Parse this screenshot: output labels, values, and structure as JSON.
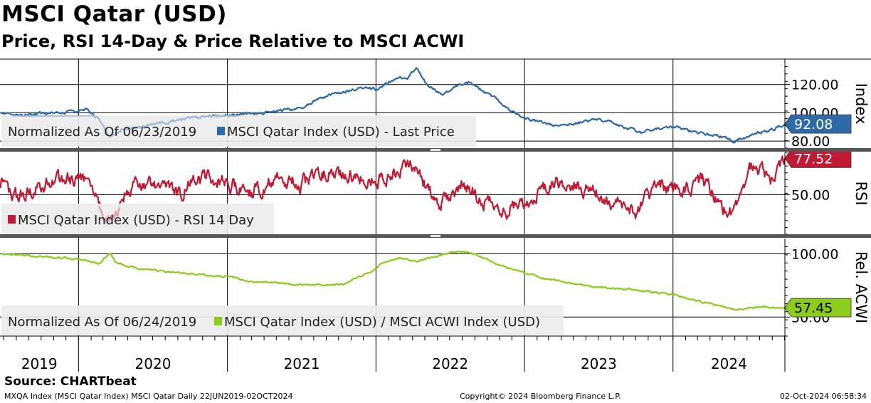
{
  "header": {
    "title": "MSCI Qatar (USD)",
    "subtitle": "Price, RSI 14-Day & Price Relative to MSCI ACWI"
  },
  "footer": {
    "source": "Source: CHARTbeat",
    "left": "MXQA Index (MSCI Qatar Index) MSCI Qatar  Daily 22JUN2019-02OCT2024",
    "center": "Copyright© 2024 Bloomberg Finance L.P.",
    "right": "02-Oct-2024 06:58:34"
  },
  "colors": {
    "price": "#2e6aa8",
    "price_faded": "#9bb5d3",
    "rsi": "#c01a34",
    "rsi_faded": "#dc96a2",
    "relative": "#8ccc1a",
    "grid": "#000000",
    "legend_bg": "#ececec",
    "divider": "#555555"
  },
  "chart_data": [
    {
      "type": "line",
      "panel": "price",
      "legend_prefix": "Normalized As Of 06/23/2019",
      "series": [
        {
          "name": "MSCI Qatar Index (USD) - Last Price",
          "points": [
            [
              "2019-06-23",
              100
            ],
            [
              "2019-08-15",
              98
            ],
            [
              "2019-10-15",
              100
            ],
            [
              "2019-12-31",
              101
            ],
            [
              "2020-01-20",
              102
            ],
            [
              "2020-02-20",
              96
            ],
            [
              "2020-03-18",
              82
            ],
            [
              "2020-04-15",
              88
            ],
            [
              "2020-06-01",
              90
            ],
            [
              "2020-08-01",
              93
            ],
            [
              "2020-10-15",
              97
            ],
            [
              "2020-12-31",
              98
            ],
            [
              "2021-03-01",
              99
            ],
            [
              "2021-05-01",
              101
            ],
            [
              "2021-07-01",
              103
            ],
            [
              "2021-08-15",
              110
            ],
            [
              "2021-10-01",
              114
            ],
            [
              "2021-11-30",
              118
            ],
            [
              "2022-01-01",
              117
            ],
            [
              "2022-02-15",
              123
            ],
            [
              "2022-03-20",
              125
            ],
            [
              "2022-04-10",
              132
            ],
            [
              "2022-05-01",
              122
            ],
            [
              "2022-06-15",
              112
            ],
            [
              "2022-07-15",
              118
            ],
            [
              "2022-08-20",
              122
            ],
            [
              "2022-09-20",
              116
            ],
            [
              "2022-10-20",
              110
            ],
            [
              "2022-11-20",
              103
            ],
            [
              "2022-12-31",
              96
            ],
            [
              "2023-02-01",
              94
            ],
            [
              "2023-03-15",
              91
            ],
            [
              "2023-05-01",
              92
            ],
            [
              "2023-06-15",
              95
            ],
            [
              "2023-07-31",
              94
            ],
            [
              "2023-09-01",
              90
            ],
            [
              "2023-10-15",
              86
            ],
            [
              "2023-11-15",
              89
            ],
            [
              "2023-12-31",
              90
            ],
            [
              "2024-02-01",
              88
            ],
            [
              "2024-03-15",
              85
            ],
            [
              "2024-05-01",
              83
            ],
            [
              "2024-06-01",
              80
            ],
            [
              "2024-07-15",
              85
            ],
            [
              "2024-09-01",
              88
            ],
            [
              "2024-10-02",
              92.08
            ]
          ]
        }
      ],
      "y_ticks": [
        80,
        100,
        120
      ],
      "y_tick_labels": [
        "80.00",
        "100.00",
        "120.00"
      ],
      "ylim": [
        75,
        138
      ],
      "y_axis_label": "Index",
      "last_value_label": "92.08"
    },
    {
      "type": "line",
      "panel": "rsi",
      "legend_prefix": "",
      "series": [
        {
          "name": "MSCI Qatar Index (USD) - RSI 14 Day",
          "points": [
            [
              "2019-06-23",
              55
            ],
            [
              "2019-08-01",
              48
            ],
            [
              "2019-10-01",
              58
            ],
            [
              "2019-12-01",
              62
            ],
            [
              "2020-01-20",
              60
            ],
            [
              "2020-03-18",
              28
            ],
            [
              "2020-05-01",
              55
            ],
            [
              "2020-07-01",
              58
            ],
            [
              "2020-09-01",
              52
            ],
            [
              "2020-11-01",
              62
            ],
            [
              "2020-12-31",
              58
            ],
            [
              "2021-03-01",
              52
            ],
            [
              "2021-05-01",
              62
            ],
            [
              "2021-07-01",
              58
            ],
            [
              "2021-09-01",
              68
            ],
            [
              "2021-11-01",
              64
            ],
            [
              "2022-01-01",
              60
            ],
            [
              "2022-03-01",
              70
            ],
            [
              "2022-04-10",
              72
            ],
            [
              "2022-06-01",
              40
            ],
            [
              "2022-08-01",
              60
            ],
            [
              "2022-10-01",
              42
            ],
            [
              "2022-12-01",
              38
            ],
            [
              "2023-02-01",
              50
            ],
            [
              "2023-04-01",
              60
            ],
            [
              "2023-06-01",
              55
            ],
            [
              "2023-08-01",
              45
            ],
            [
              "2023-10-01",
              38
            ],
            [
              "2023-12-01",
              58
            ],
            [
              "2024-02-01",
              52
            ],
            [
              "2024-03-15",
              62
            ],
            [
              "2024-05-01",
              40
            ],
            [
              "2024-06-01",
              35
            ],
            [
              "2024-07-15",
              74
            ],
            [
              "2024-09-01",
              62
            ],
            [
              "2024-10-02",
              77.52
            ]
          ]
        }
      ],
      "y_ticks": [
        50
      ],
      "y_tick_labels": [
        "50.00"
      ],
      "ylim": [
        20,
        82
      ],
      "y_axis_label": "RSI",
      "last_value_label": "77.52"
    },
    {
      "type": "line",
      "panel": "relative",
      "legend_prefix": "Normalized As Of 06/24/2019",
      "series": [
        {
          "name": "MSCI Qatar Index (USD) / MSCI ACWI Index (USD)",
          "points": [
            [
              "2019-06-24",
              100
            ],
            [
              "2019-10-01",
              98
            ],
            [
              "2019-12-31",
              96
            ],
            [
              "2020-02-20",
              92
            ],
            [
              "2020-03-18",
              101
            ],
            [
              "2020-04-01",
              93
            ],
            [
              "2020-06-01",
              88
            ],
            [
              "2020-09-01",
              85
            ],
            [
              "2020-12-31",
              82
            ],
            [
              "2021-03-01",
              78
            ],
            [
              "2021-06-01",
              76
            ],
            [
              "2021-09-01",
              75
            ],
            [
              "2021-10-15",
              76
            ],
            [
              "2021-12-31",
              88
            ],
            [
              "2022-01-15",
              92
            ],
            [
              "2022-03-01",
              97
            ],
            [
              "2022-04-10",
              94
            ],
            [
              "2022-06-01",
              98
            ],
            [
              "2022-07-15",
              102
            ],
            [
              "2022-09-01",
              100
            ],
            [
              "2022-10-15",
              93
            ],
            [
              "2022-12-31",
              85
            ],
            [
              "2023-03-01",
              80
            ],
            [
              "2023-06-01",
              75
            ],
            [
              "2023-09-01",
              72
            ],
            [
              "2023-12-31",
              68
            ],
            [
              "2024-03-01",
              63
            ],
            [
              "2024-06-01",
              56
            ],
            [
              "2024-08-01",
              58
            ],
            [
              "2024-10-02",
              57.45
            ]
          ]
        }
      ],
      "y_ticks": [
        50,
        100
      ],
      "y_tick_labels": [
        "50.00",
        "100.00"
      ],
      "ylim": [
        35,
        112
      ],
      "y_axis_label": "Rel. ACWI",
      "last_value_label": "57.45"
    }
  ],
  "x_axis": {
    "start": "2019-06-22",
    "end": "2024-10-02",
    "year_labels": [
      "2019",
      "2020",
      "2021",
      "2022",
      "2023",
      "2024"
    ],
    "year_boundaries": [
      "2020-01-01",
      "2021-01-01",
      "2022-01-01",
      "2023-01-01",
      "2024-01-01"
    ]
  }
}
